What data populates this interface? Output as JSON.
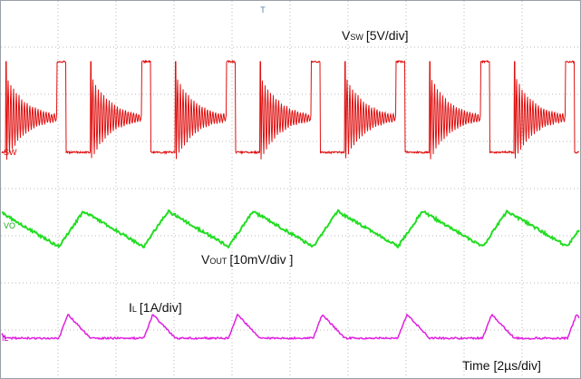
{
  "traces": [
    {
      "marker": "SW",
      "label": "V",
      "sub": "SW",
      "scale": "[5V/div]"
    },
    {
      "marker": "VO",
      "label": "V",
      "sub": "OUT",
      "scale": "[10mV/div ]"
    },
    {
      "marker": "IL",
      "label": "I",
      "sub": "L",
      "scale": "[1A/div]"
    }
  ],
  "trigger": "T",
  "time_label": "Time [2µs/div]"
}
